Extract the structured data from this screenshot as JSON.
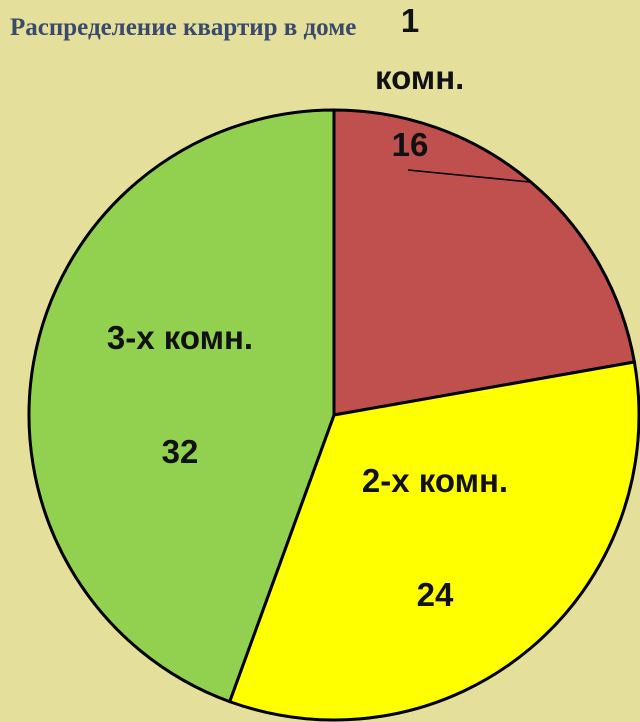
{
  "chart_data": {
    "type": "pie",
    "title": "Распределение квартир в доме",
    "categories": [
      "1 комн.",
      "2-х комн.",
      "3-х комн."
    ],
    "values": [
      16,
      24,
      32
    ],
    "colors": [
      "#c0504d",
      "#ffff00",
      "#92d050"
    ]
  }
}
